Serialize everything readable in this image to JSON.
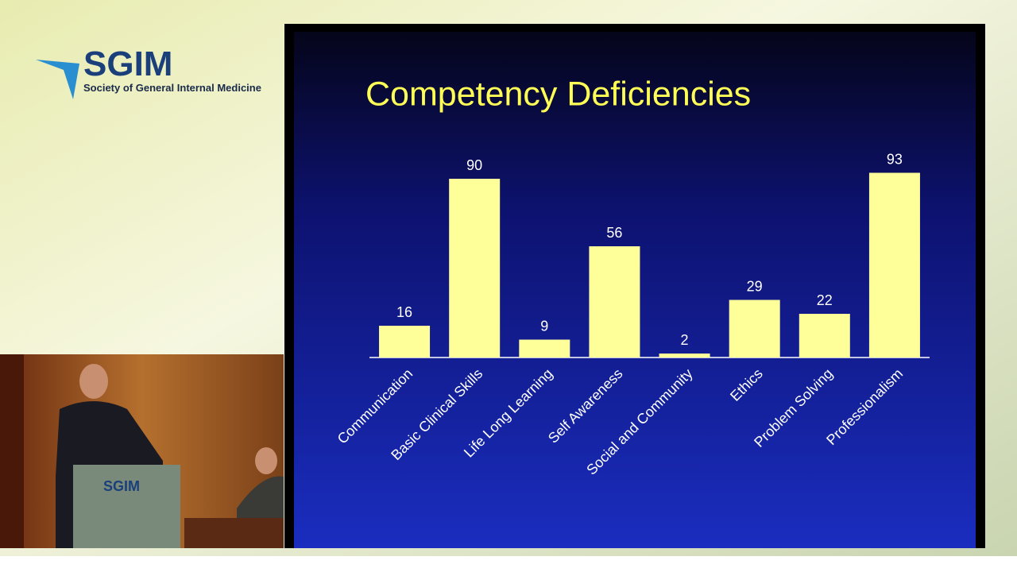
{
  "logo": {
    "name": "SGIM",
    "subtitle": "Society of General Internal Medicine"
  },
  "chart_data": {
    "type": "bar",
    "title": "Competency Deficiencies",
    "categories": [
      "Communication",
      "Basic Clinical Skills",
      "Life Long Learning",
      "Self Awareness",
      "Social and Community",
      "Ethics",
      "Problem Solving",
      "Professionalism"
    ],
    "values": [
      16,
      90,
      9,
      56,
      2,
      29,
      22,
      93
    ],
    "color": "#ffff99"
  }
}
